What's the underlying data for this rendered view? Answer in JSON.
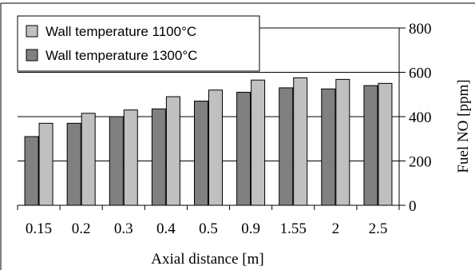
{
  "chart_data": {
    "type": "bar",
    "title": "",
    "xlabel": "Axial distance [m]",
    "ylabel": "Fuel NO [ppm]",
    "categories": [
      "0.15",
      "0.2",
      "0.3",
      "0.4",
      "0.5",
      "0.9",
      "1.55",
      "2",
      "2.5"
    ],
    "ylim": [
      0,
      800
    ],
    "yticks": [
      "0",
      "200",
      "400",
      "600",
      "800"
    ],
    "grid": true,
    "legend_position": "top-left",
    "series": [
      {
        "name": "Wall temperature 1300°C",
        "color": "#808080",
        "values": [
          310,
          370,
          400,
          435,
          470,
          510,
          530,
          525,
          540
        ]
      },
      {
        "name": "Wall temperature 1100°C",
        "color": "#c0c0c0",
        "values": [
          370,
          415,
          430,
          490,
          520,
          565,
          575,
          568,
          550
        ]
      }
    ],
    "legend": [
      "Wall temperature 1100°C",
      "Wall temperature 1300°C"
    ]
  }
}
